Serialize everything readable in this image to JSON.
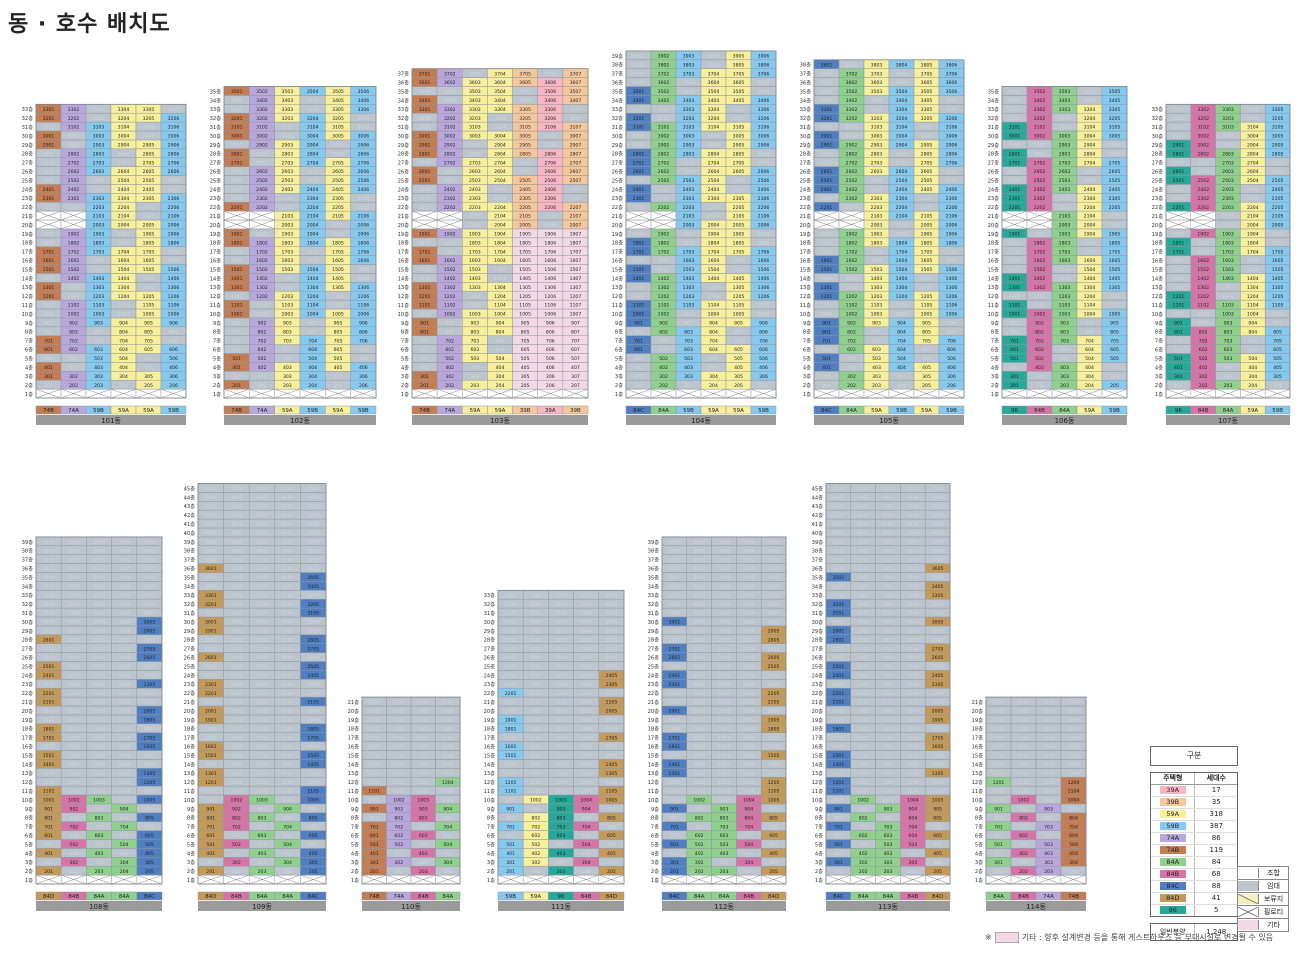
{
  "title": "동 · 호수 배치도",
  "colors": {
    "39A": "#f7b6c2",
    "39B": "#f6c79a",
    "59A": "#f7ef9a",
    "59B": "#86c9ee",
    "74A": "#b9a7dc",
    "74B": "#c47c52",
    "84A": "#8ed08c",
    "84B": "#d774a7",
    "84C": "#4f7fc1",
    "84D": "#c49a5a",
    "96": "#27a99a",
    "union": "#ffffff",
    "rental": "#bcc4ce",
    "pilotis": "#ffffff",
    "other": "#f3d9e6",
    "reserve": "#f5efc0"
  },
  "buildings": [
    {
      "id": "101",
      "label": "101동",
      "floors": 33,
      "types": [
        "74B",
        "74A",
        "59B",
        "59A",
        "59A",
        "59B"
      ],
      "lines": 6
    },
    {
      "id": "102",
      "label": "102동",
      "floors": 35,
      "types": [
        "74B",
        "74A",
        "59A",
        "59B",
        "59A",
        "59B"
      ],
      "lines": 6
    },
    {
      "id": "103",
      "label": "103동",
      "floors": 37,
      "types": [
        "74B",
        "74A",
        "59A",
        "59A",
        "39B",
        "39A",
        "39B"
      ],
      "lines": 7
    },
    {
      "id": "104",
      "label": "104동",
      "floors": 39,
      "types": [
        "84C",
        "84A",
        "59B",
        "59A",
        "59A",
        "59B"
      ],
      "lines": 6
    },
    {
      "id": "105",
      "label": "105동",
      "floors": 38,
      "types": [
        "84C",
        "84A",
        "59A",
        "59B",
        "59A",
        "59B"
      ],
      "lines": 6
    },
    {
      "id": "106",
      "label": "106동",
      "floors": 35,
      "types": [
        "96",
        "84B",
        "84A",
        "59A",
        "59B"
      ],
      "lines": 5
    },
    {
      "id": "107",
      "label": "107동",
      "floors": 33,
      "types": [
        "96",
        "84B",
        "84A",
        "59A",
        "59B"
      ],
      "lines": 5
    },
    {
      "id": "108",
      "label": "108동",
      "floors": 39,
      "types": [
        "84D",
        "84B",
        "84A",
        "84A",
        "84C"
      ],
      "lines": 5
    },
    {
      "id": "109",
      "label": "109동",
      "floors": 45,
      "types": [
        "84D",
        "84B",
        "84A",
        "84A",
        "84C"
      ],
      "lines": 5
    },
    {
      "id": "110",
      "label": "110동",
      "floors": 21,
      "types": [
        "74B",
        "74A",
        "84B",
        "84A"
      ],
      "lines": 4
    },
    {
      "id": "111",
      "label": "111동",
      "floors": 33,
      "types": [
        "59B",
        "59A",
        "96",
        "84B",
        "84D"
      ],
      "lines": 5
    },
    {
      "id": "112",
      "label": "112동",
      "floors": 39,
      "types": [
        "84C",
        "84A",
        "84A",
        "84B",
        "84D"
      ],
      "lines": 5
    },
    {
      "id": "113",
      "label": "113동",
      "floors": 45,
      "types": [
        "84C",
        "84A",
        "84A",
        "84B",
        "84D"
      ],
      "lines": 5
    },
    {
      "id": "114",
      "label": "114동",
      "floors": 21,
      "types": [
        "84A",
        "84B",
        "74A",
        "74B"
      ],
      "lines": 4
    }
  ],
  "legend": {
    "header": "구분",
    "col_type": "주택형",
    "col_count": "세대수",
    "rows": [
      {
        "type": "39A",
        "count": "17"
      },
      {
        "type": "39B",
        "count": "35"
      },
      {
        "type": "59A",
        "count": "318"
      },
      {
        "type": "59B",
        "count": "387"
      },
      {
        "type": "74A",
        "count": "86"
      },
      {
        "type": "74B",
        "count": "119"
      },
      {
        "type": "84A",
        "count": "84"
      },
      {
        "type": "84B",
        "count": "68"
      },
      {
        "type": "84C",
        "count": "88"
      },
      {
        "type": "84D",
        "count": "41"
      },
      {
        "type": "96",
        "count": "5"
      }
    ],
    "total_label": "일반분양",
    "total_value": "1,248"
  },
  "category_legend": [
    {
      "label": "조합",
      "key": "union"
    },
    {
      "label": "임대",
      "key": "rental"
    },
    {
      "label": "보류지",
      "key": "reserve"
    },
    {
      "label": "필로티",
      "key": "pilotis"
    },
    {
      "label": "기타",
      "key": "other"
    }
  ],
  "footnote_prefix": "※",
  "footnote": "기타 : 향후 설계변경 등을 통해 게스트하우스 등 부대시설로 변경될 수 있음"
}
